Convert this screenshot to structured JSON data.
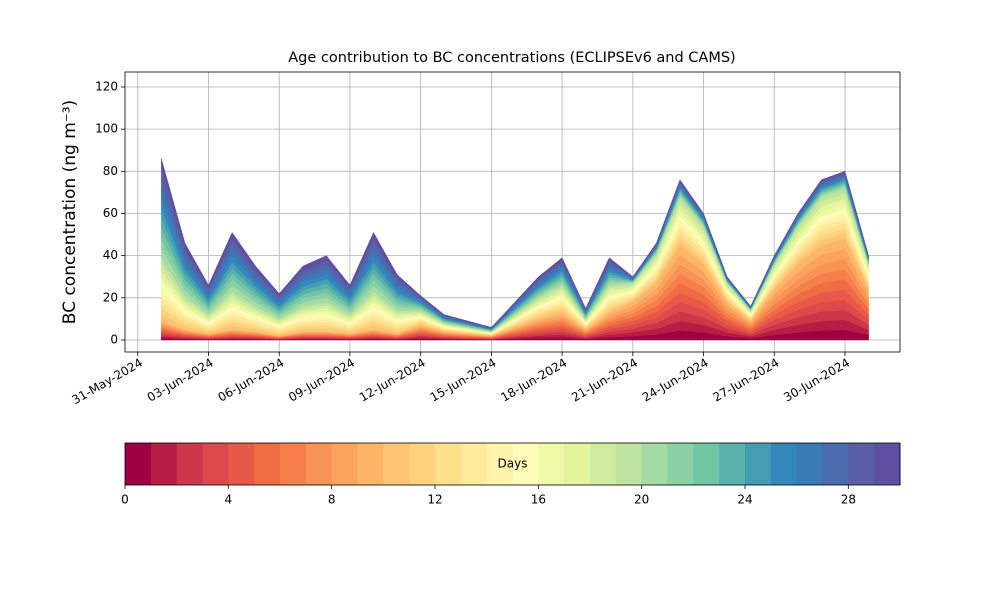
{
  "chart_data": {
    "type": "stacked_area",
    "title": "Age contribution to BC concentrations (ECLIPSEv6 and CAMS)",
    "ylabel": "BC concentration (ng m⁻³)",
    "x": [
      "2024-06-01",
      "2024-06-02",
      "2024-06-03",
      "2024-06-04",
      "2024-06-05",
      "2024-06-06",
      "2024-06-07",
      "2024-06-08",
      "2024-06-09",
      "2024-06-10",
      "2024-06-11",
      "2024-06-12",
      "2024-06-13",
      "2024-06-14",
      "2024-06-15",
      "2024-06-16",
      "2024-06-17",
      "2024-06-18",
      "2024-06-19",
      "2024-06-20",
      "2024-06-21",
      "2024-06-22",
      "2024-06-23",
      "2024-06-24",
      "2024-06-25",
      "2024-06-26",
      "2024-06-27",
      "2024-06-28",
      "2024-06-29",
      "2024-06-30",
      "2024-07-01"
    ],
    "xlim": [
      "2024-05-30T11:00",
      "2024-07-02T08:00"
    ],
    "xticks": [
      {
        "value": "2024-05-31",
        "label": "31-May-2024"
      },
      {
        "value": "2024-06-03",
        "label": "03-Jun-2024"
      },
      {
        "value": "2024-06-06",
        "label": "06-Jun-2024"
      },
      {
        "value": "2024-06-09",
        "label": "09-Jun-2024"
      },
      {
        "value": "2024-06-12",
        "label": "12-Jun-2024"
      },
      {
        "value": "2024-06-15",
        "label": "15-Jun-2024"
      },
      {
        "value": "2024-06-18",
        "label": "18-Jun-2024"
      },
      {
        "value": "2024-06-21",
        "label": "21-Jun-2024"
      },
      {
        "value": "2024-06-24",
        "label": "24-Jun-2024"
      },
      {
        "value": "2024-06-27",
        "label": "27-Jun-2024"
      },
      {
        "value": "2024-06-30",
        "label": "30-Jun-2024"
      }
    ],
    "ylim": [
      -5.7,
      127.1
    ],
    "yticks": [
      0,
      20,
      40,
      60,
      80,
      100,
      120
    ],
    "grid": true,
    "series": [
      {
        "color": "#9e0142",
        "values": [
          0.9,
          0.5,
          0.3,
          0.5,
          0.4,
          0.2,
          0.4,
          0.4,
          0.3,
          0.5,
          0.3,
          0.7,
          0.4,
          0.3,
          0.2,
          0.6,
          1.0,
          1.3,
          0.5,
          1.3,
          1.8,
          2.7,
          4.5,
          3.6,
          1.8,
          0.9,
          2.4,
          3.6,
          4.5,
          4.8,
          2.4
        ]
      },
      {
        "color": "#b71c46",
        "values": [
          0.9,
          0.5,
          0.3,
          0.5,
          0.4,
          0.2,
          0.4,
          0.4,
          0.3,
          0.5,
          0.3,
          0.7,
          0.4,
          0.3,
          0.2,
          0.6,
          1.0,
          1.3,
          0.5,
          1.3,
          1.8,
          2.7,
          4.5,
          3.6,
          1.8,
          0.9,
          2.4,
          3.6,
          4.5,
          4.8,
          2.4
        ]
      },
      {
        "color": "#cd3549",
        "values": [
          0.9,
          0.5,
          0.3,
          0.5,
          0.4,
          0.2,
          0.4,
          0.4,
          0.3,
          0.5,
          0.3,
          0.7,
          0.4,
          0.3,
          0.2,
          0.6,
          1.0,
          1.3,
          0.5,
          1.3,
          1.8,
          2.7,
          4.5,
          3.6,
          1.8,
          0.9,
          2.4,
          3.6,
          4.5,
          4.8,
          2.4
        ]
      },
      {
        "color": "#dd4a4c",
        "values": [
          0.9,
          0.5,
          0.3,
          0.5,
          0.4,
          0.2,
          0.4,
          0.4,
          0.3,
          0.5,
          0.3,
          0.7,
          0.4,
          0.3,
          0.2,
          0.6,
          1.0,
          1.3,
          0.5,
          1.3,
          1.8,
          2.7,
          4.5,
          3.6,
          1.8,
          0.9,
          2.4,
          3.6,
          4.5,
          4.8,
          2.4
        ]
      },
      {
        "color": "#e85a47",
        "values": [
          0.9,
          0.5,
          0.3,
          0.5,
          0.4,
          0.2,
          0.4,
          0.4,
          0.3,
          0.5,
          0.3,
          0.7,
          0.4,
          0.3,
          0.2,
          0.6,
          1.0,
          1.3,
          0.5,
          1.3,
          1.8,
          2.7,
          4.5,
          3.6,
          1.8,
          0.9,
          2.4,
          3.6,
          4.5,
          4.8,
          2.4
        ]
      },
      {
        "color": "#f06c43",
        "values": [
          0.9,
          0.5,
          0.3,
          0.5,
          0.4,
          0.2,
          0.4,
          0.4,
          0.3,
          0.5,
          0.3,
          0.7,
          0.4,
          0.3,
          0.2,
          0.6,
          1.0,
          1.3,
          0.5,
          1.3,
          1.8,
          2.7,
          4.5,
          3.6,
          1.8,
          0.9,
          2.4,
          3.6,
          4.5,
          4.8,
          2.4
        ]
      },
      {
        "color": "#f67f4b",
        "values": [
          0.9,
          0.5,
          0.3,
          0.5,
          0.4,
          0.2,
          0.4,
          0.4,
          0.3,
          0.5,
          0.3,
          0.7,
          0.4,
          0.3,
          0.2,
          0.6,
          1.0,
          1.3,
          0.5,
          1.3,
          1.8,
          2.7,
          4.5,
          3.6,
          1.8,
          0.9,
          2.4,
          3.6,
          4.5,
          4.8,
          2.4
        ]
      },
      {
        "color": "#f99355",
        "values": [
          0.9,
          0.5,
          0.3,
          0.5,
          0.4,
          0.2,
          0.4,
          0.4,
          0.3,
          0.5,
          0.3,
          0.7,
          0.4,
          0.3,
          0.2,
          0.6,
          1.0,
          1.3,
          0.5,
          1.3,
          1.8,
          2.7,
          4.5,
          3.6,
          1.8,
          0.9,
          2.4,
          3.6,
          4.5,
          4.8,
          2.4
        ]
      },
      {
        "color": "#fca45f",
        "values": [
          0.9,
          0.5,
          0.3,
          0.5,
          0.4,
          0.2,
          0.4,
          0.4,
          0.3,
          0.5,
          0.3,
          0.7,
          0.4,
          0.3,
          0.2,
          0.6,
          1.0,
          1.3,
          0.5,
          1.3,
          1.8,
          2.7,
          4.5,
          3.6,
          1.8,
          0.9,
          2.4,
          3.6,
          4.5,
          4.8,
          2.4
        ]
      },
      {
        "color": "#fdb567",
        "values": [
          0.9,
          0.5,
          0.3,
          0.5,
          0.4,
          0.2,
          0.4,
          0.4,
          0.3,
          0.5,
          0.3,
          0.7,
          0.4,
          0.3,
          0.2,
          0.6,
          1.0,
          1.3,
          0.5,
          1.3,
          1.8,
          2.7,
          4.5,
          3.6,
          1.8,
          0.9,
          2.4,
          3.6,
          4.5,
          4.8,
          2.4
        ]
      },
      {
        "color": "#fdc473",
        "values": [
          3.0,
          1.6,
          0.9,
          1.8,
          1.2,
          0.8,
          1.2,
          1.4,
          0.9,
          1.8,
          1.1,
          0.7,
          0.4,
          0.3,
          0.2,
          0.6,
          1.0,
          1.3,
          0.5,
          1.3,
          0.9,
          1.4,
          2.3,
          1.8,
          0.9,
          0.5,
          1.2,
          1.8,
          2.3,
          2.4,
          1.2
        ]
      },
      {
        "color": "#fed27f",
        "values": [
          3.0,
          1.6,
          0.9,
          1.8,
          1.2,
          0.8,
          1.2,
          1.4,
          0.9,
          1.8,
          1.1,
          0.7,
          0.4,
          0.3,
          0.2,
          0.6,
          1.0,
          1.3,
          0.5,
          1.3,
          0.9,
          1.4,
          2.3,
          1.8,
          0.9,
          0.5,
          1.2,
          1.8,
          2.3,
          2.4,
          1.2
        ]
      },
      {
        "color": "#fee08b",
        "values": [
          3.0,
          1.6,
          0.9,
          1.8,
          1.2,
          0.8,
          1.2,
          1.4,
          0.9,
          1.8,
          1.1,
          0.7,
          0.4,
          0.3,
          0.2,
          0.6,
          1.0,
          1.3,
          0.5,
          1.3,
          0.9,
          1.4,
          2.3,
          1.8,
          0.9,
          0.5,
          1.2,
          1.8,
          2.3,
          2.4,
          1.2
        ]
      },
      {
        "color": "#feea9a",
        "values": [
          3.0,
          1.6,
          0.9,
          1.8,
          1.2,
          0.8,
          1.2,
          1.4,
          0.9,
          1.8,
          1.1,
          0.7,
          0.4,
          0.3,
          0.2,
          0.6,
          1.0,
          1.3,
          0.5,
          1.3,
          0.9,
          1.4,
          2.3,
          1.8,
          0.9,
          0.5,
          1.2,
          1.8,
          2.3,
          2.4,
          1.2
        ]
      },
      {
        "color": "#fff4ab",
        "values": [
          3.0,
          1.6,
          0.9,
          1.8,
          1.2,
          0.8,
          1.2,
          1.4,
          0.9,
          1.8,
          1.1,
          0.7,
          0.4,
          0.3,
          0.2,
          0.6,
          1.0,
          1.3,
          0.5,
          1.3,
          0.9,
          1.4,
          2.3,
          1.8,
          0.9,
          0.5,
          1.2,
          1.8,
          2.3,
          2.4,
          1.2
        ]
      },
      {
        "color": "#fbfdb9",
        "values": [
          3.0,
          1.6,
          0.9,
          1.8,
          1.2,
          0.8,
          1.2,
          1.4,
          0.9,
          1.8,
          1.1,
          0.7,
          0.4,
          0.3,
          0.2,
          0.6,
          1.0,
          1.3,
          0.5,
          1.3,
          0.9,
          1.4,
          2.3,
          1.8,
          0.9,
          0.5,
          1.2,
          1.8,
          2.3,
          2.4,
          1.2
        ]
      },
      {
        "color": "#f0f9a7",
        "values": [
          3.0,
          1.6,
          0.9,
          1.8,
          1.2,
          0.8,
          1.2,
          1.4,
          0.9,
          1.8,
          1.1,
          0.7,
          0.4,
          0.3,
          0.2,
          0.6,
          1.0,
          1.3,
          0.5,
          1.3,
          0.9,
          1.4,
          2.3,
          1.8,
          0.9,
          0.5,
          1.2,
          1.8,
          2.3,
          2.4,
          1.2
        ]
      },
      {
        "color": "#e4f49b",
        "values": [
          3.0,
          1.6,
          0.9,
          1.8,
          1.2,
          0.8,
          1.2,
          1.4,
          0.9,
          1.8,
          1.1,
          0.7,
          0.4,
          0.3,
          0.2,
          0.6,
          1.0,
          1.3,
          0.5,
          1.3,
          0.9,
          1.4,
          2.3,
          1.8,
          0.9,
          0.5,
          1.2,
          1.8,
          2.3,
          2.4,
          1.2
        ]
      },
      {
        "color": "#d1ec9c",
        "values": [
          3.0,
          1.6,
          0.9,
          1.8,
          1.2,
          0.8,
          1.2,
          1.4,
          0.9,
          1.8,
          1.1,
          0.7,
          0.4,
          0.3,
          0.2,
          0.6,
          1.0,
          1.3,
          0.5,
          1.3,
          0.9,
          1.4,
          2.3,
          1.8,
          0.9,
          0.5,
          1.2,
          1.8,
          2.3,
          2.4,
          1.2
        ]
      },
      {
        "color": "#bce4a0",
        "values": [
          3.0,
          1.6,
          0.9,
          1.8,
          1.2,
          0.8,
          1.2,
          1.4,
          0.9,
          1.8,
          1.1,
          0.7,
          0.4,
          0.3,
          0.2,
          0.6,
          1.0,
          1.3,
          0.5,
          1.3,
          0.9,
          1.4,
          2.3,
          1.8,
          0.9,
          0.5,
          1.2,
          1.8,
          2.3,
          2.4,
          1.2
        ]
      },
      {
        "color": "#a4daa4",
        "values": [
          4.7,
          2.5,
          1.4,
          2.8,
          1.9,
          1.2,
          1.9,
          2.2,
          1.4,
          2.8,
          1.7,
          0.7,
          0.4,
          0.3,
          0.2,
          0.6,
          1.0,
          1.3,
          0.5,
          1.3,
          0.3,
          0.5,
          0.8,
          0.6,
          0.3,
          0.2,
          0.4,
          0.6,
          0.8,
          0.8,
          0.4
        ]
      },
      {
        "color": "#89d0a4",
        "values": [
          4.7,
          2.5,
          1.4,
          2.8,
          1.9,
          1.2,
          1.9,
          2.2,
          1.4,
          2.8,
          1.7,
          0.7,
          0.4,
          0.3,
          0.2,
          0.6,
          1.0,
          1.3,
          0.5,
          1.3,
          0.3,
          0.5,
          0.8,
          0.6,
          0.3,
          0.2,
          0.4,
          0.6,
          0.8,
          0.8,
          0.4
        ]
      },
      {
        "color": "#6fc5a4",
        "values": [
          4.7,
          2.5,
          1.4,
          2.8,
          1.9,
          1.2,
          1.9,
          2.2,
          1.4,
          2.8,
          1.7,
          0.7,
          0.4,
          0.3,
          0.2,
          0.6,
          1.0,
          1.3,
          0.5,
          1.3,
          0.3,
          0.5,
          0.8,
          0.6,
          0.3,
          0.2,
          0.4,
          0.6,
          0.8,
          0.8,
          0.4
        ]
      },
      {
        "color": "#58b2aa",
        "values": [
          4.7,
          2.5,
          1.4,
          2.8,
          1.9,
          1.2,
          1.9,
          2.2,
          1.4,
          2.8,
          1.7,
          0.7,
          0.4,
          0.3,
          0.2,
          0.6,
          1.0,
          1.3,
          0.5,
          1.3,
          0.3,
          0.5,
          0.8,
          0.6,
          0.3,
          0.2,
          0.4,
          0.6,
          0.8,
          0.8,
          0.4
        ]
      },
      {
        "color": "#449db3",
        "values": [
          4.7,
          2.5,
          1.4,
          2.8,
          1.9,
          1.2,
          1.9,
          2.2,
          1.4,
          2.8,
          1.7,
          0.7,
          0.4,
          0.3,
          0.2,
          0.6,
          1.0,
          1.3,
          0.5,
          1.3,
          0.3,
          0.5,
          0.8,
          0.6,
          0.3,
          0.2,
          0.4,
          0.6,
          0.8,
          0.8,
          0.4
        ]
      },
      {
        "color": "#3288bc",
        "values": [
          4.7,
          2.5,
          1.4,
          2.8,
          1.9,
          1.2,
          1.9,
          2.2,
          1.4,
          2.8,
          1.7,
          0.7,
          0.4,
          0.3,
          0.2,
          0.6,
          1.0,
          1.3,
          0.5,
          1.3,
          0.3,
          0.5,
          0.8,
          0.6,
          0.3,
          0.2,
          0.4,
          0.6,
          0.8,
          0.8,
          0.4
        ]
      },
      {
        "color": "#3a7bb7",
        "values": [
          4.7,
          2.5,
          1.4,
          2.8,
          1.9,
          1.2,
          1.9,
          2.2,
          1.4,
          2.8,
          1.7,
          0.7,
          0.4,
          0.3,
          0.2,
          0.6,
          1.0,
          1.3,
          0.5,
          1.3,
          0.3,
          0.5,
          0.8,
          0.6,
          0.3,
          0.2,
          0.4,
          0.6,
          0.8,
          0.8,
          0.4
        ]
      },
      {
        "color": "#4a6cae",
        "values": [
          4.7,
          2.5,
          1.4,
          2.8,
          1.9,
          1.2,
          1.9,
          2.2,
          1.4,
          2.8,
          1.7,
          0.7,
          0.4,
          0.3,
          0.2,
          0.6,
          1.0,
          1.3,
          0.5,
          1.3,
          0.3,
          0.5,
          0.8,
          0.6,
          0.3,
          0.2,
          0.4,
          0.6,
          0.8,
          0.8,
          0.4
        ]
      },
      {
        "color": "#5a5ea6",
        "values": [
          4.7,
          2.5,
          1.4,
          2.8,
          1.9,
          1.2,
          1.9,
          2.2,
          1.4,
          2.8,
          1.7,
          0.7,
          0.4,
          0.3,
          0.2,
          0.6,
          1.0,
          1.3,
          0.5,
          1.3,
          0.3,
          0.5,
          0.8,
          0.6,
          0.3,
          0.2,
          0.4,
          0.6,
          0.8,
          0.8,
          0.4
        ]
      },
      {
        "color": "#5e4fa2",
        "values": [
          4.7,
          2.5,
          1.4,
          2.8,
          1.9,
          1.2,
          1.9,
          2.2,
          1.4,
          2.8,
          1.7,
          0.7,
          0.4,
          0.3,
          0.2,
          0.6,
          1.0,
          1.3,
          0.5,
          1.3,
          0.3,
          0.5,
          0.8,
          0.6,
          0.3,
          0.2,
          0.4,
          0.6,
          0.8,
          0.8,
          0.4
        ]
      }
    ],
    "colorbar": {
      "label": "Days",
      "lim": [
        0,
        30
      ],
      "ticks": [
        0,
        4,
        8,
        12,
        16,
        20,
        24,
        28
      ]
    }
  }
}
